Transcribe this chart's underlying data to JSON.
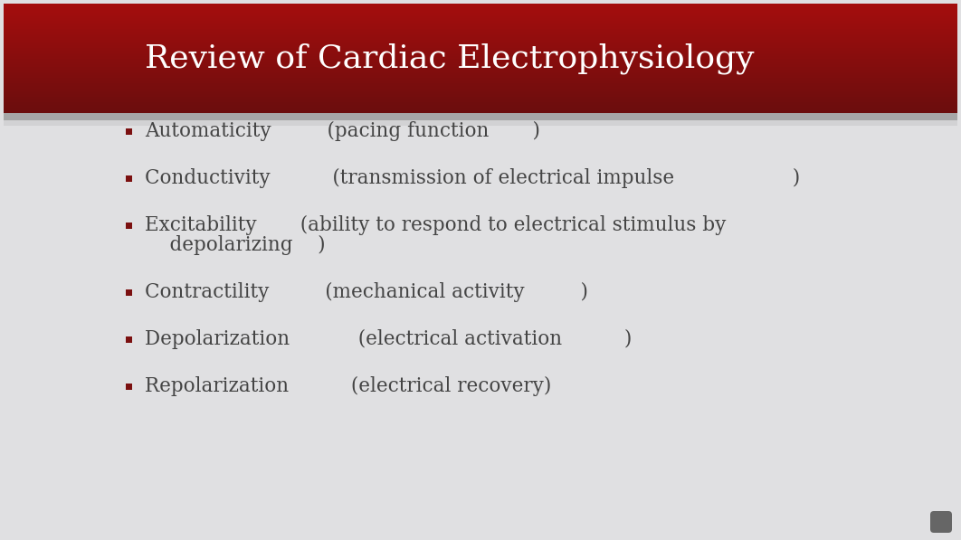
{
  "title": "Review of Cardiac Electrophysiology",
  "title_color": "#FFFFFF",
  "slide_bg_color": "#E0E0E2",
  "title_bar_dark": "#6B0A0A",
  "title_bar_mid": "#8B1515",
  "title_bar_light": "#A52020",
  "shadow_color": "#555555",
  "bullet_color": "#444444",
  "bullet_marker_color": "#7B1010",
  "bullet_fontsize": 15.5,
  "title_fontsize": 26,
  "corner_color": "#666666",
  "bullets": [
    [
      "Automaticity         (pacing function       )"
    ],
    [
      "Conductivity          (transmission of electrical impulse                   )"
    ],
    [
      "Excitability       (ability to respond to electrical stimulus by",
      "    depolarizing    )"
    ],
    [
      "Contractility         (mechanical activity         )"
    ],
    [
      "Depolarization           (electrical activation          )"
    ],
    [
      "Repolarization          (electrical recovery)"
    ]
  ]
}
